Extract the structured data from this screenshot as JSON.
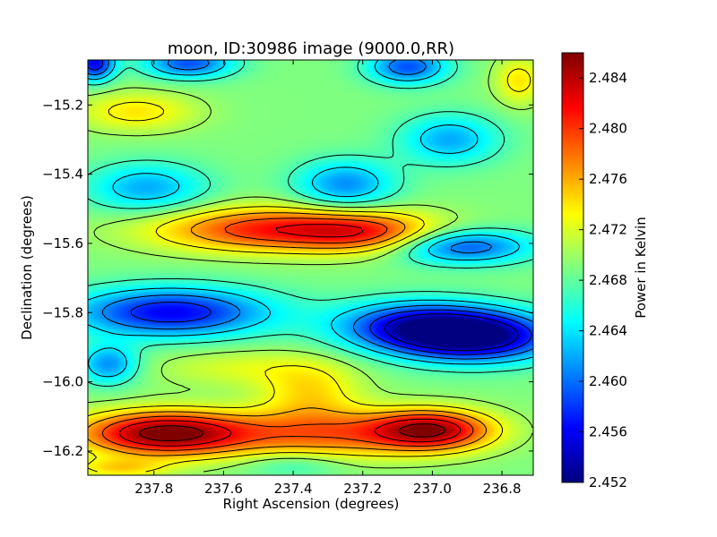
{
  "chart_data": {
    "type": "heatmap",
    "title": "moon, ID:30986 image (9000.0,RR)",
    "xlabel": "Right Ascension (degrees)",
    "ylabel": "Declination (degrees)",
    "colorbar_label": "Power in Kelvin",
    "colormap": "jet",
    "xlim": [
      237.99,
      236.71
    ],
    "ylim": [
      -16.27,
      -15.07
    ],
    "clim": [
      2.452,
      2.486
    ],
    "x_ticks": [
      {
        "value": 237.8,
        "label": "237.8"
      },
      {
        "value": 237.6,
        "label": "237.6"
      },
      {
        "value": 237.4,
        "label": "237.4"
      },
      {
        "value": 237.2,
        "label": "237.2"
      },
      {
        "value": 237.0,
        "label": "237.0"
      },
      {
        "value": 236.8,
        "label": "236.8"
      }
    ],
    "y_ticks": [
      {
        "value": -15.2,
        "label": "−15.2"
      },
      {
        "value": -15.4,
        "label": "−15.4"
      },
      {
        "value": -15.6,
        "label": "−15.6"
      },
      {
        "value": -15.8,
        "label": "−15.8"
      },
      {
        "value": -16.0,
        "label": "−16.0"
      },
      {
        "value": -16.2,
        "label": "−16.2"
      }
    ],
    "colorbar_ticks": [
      {
        "value": 2.452,
        "label": "2.452"
      },
      {
        "value": 2.456,
        "label": "2.456"
      },
      {
        "value": 2.46,
        "label": "2.460"
      },
      {
        "value": 2.464,
        "label": "2.464"
      },
      {
        "value": 2.468,
        "label": "2.468"
      },
      {
        "value": 2.472,
        "label": "2.472"
      },
      {
        "value": 2.476,
        "label": "2.476"
      },
      {
        "value": 2.48,
        "label": "2.480"
      },
      {
        "value": 2.484,
        "label": "2.484"
      }
    ],
    "base_level": 2.469,
    "features": [
      {
        "ra": 237.77,
        "dec": -16.15,
        "value": 2.486,
        "ra_width": 0.17,
        "dec_width": 0.045
      },
      {
        "ra": 237.0,
        "dec": -16.14,
        "value": 2.483,
        "ra_width": 0.12,
        "dec_width": 0.04
      },
      {
        "ra": 237.3,
        "dec": -16.15,
        "value": 2.478,
        "ra_width": 0.22,
        "dec_width": 0.05
      },
      {
        "ra": 237.45,
        "dec": -15.56,
        "value": 2.481,
        "ra_width": 0.24,
        "dec_width": 0.045
      },
      {
        "ra": 237.18,
        "dec": -15.57,
        "value": 2.476,
        "ra_width": 0.14,
        "dec_width": 0.04
      },
      {
        "ra": 237.75,
        "dec": -15.8,
        "value": 2.456,
        "ra_width": 0.2,
        "dec_width": 0.05
      },
      {
        "ra": 236.87,
        "dec": -15.87,
        "value": 2.453,
        "ra_width": 0.16,
        "dec_width": 0.05
      },
      {
        "ra": 237.05,
        "dec": -15.84,
        "value": 2.457,
        "ra_width": 0.16,
        "dec_width": 0.05
      },
      {
        "ra": 236.91,
        "dec": -15.61,
        "value": 2.459,
        "ra_width": 0.14,
        "dec_width": 0.035
      },
      {
        "ra": 237.97,
        "dec": -15.08,
        "value": 2.456,
        "ra_width": 0.04,
        "dec_width": 0.035
      },
      {
        "ra": 237.7,
        "dec": -15.08,
        "value": 2.459,
        "ra_width": 0.09,
        "dec_width": 0.03
      },
      {
        "ra": 237.07,
        "dec": -15.09,
        "value": 2.459,
        "ra_width": 0.08,
        "dec_width": 0.035
      },
      {
        "ra": 237.82,
        "dec": -15.44,
        "value": 2.462,
        "ra_width": 0.12,
        "dec_width": 0.05
      },
      {
        "ra": 237.25,
        "dec": -15.43,
        "value": 2.461,
        "ra_width": 0.1,
        "dec_width": 0.05
      },
      {
        "ra": 236.95,
        "dec": -15.3,
        "value": 2.462,
        "ra_width": 0.1,
        "dec_width": 0.05
      },
      {
        "ra": 237.93,
        "dec": -15.95,
        "value": 2.461,
        "ra_width": 0.06,
        "dec_width": 0.04
      },
      {
        "ra": 237.85,
        "dec": -15.22,
        "value": 2.474,
        "ra_width": 0.12,
        "dec_width": 0.04
      },
      {
        "ra": 236.75,
        "dec": -15.13,
        "value": 2.474,
        "ra_width": 0.05,
        "dec_width": 0.05
      },
      {
        "ra": 237.55,
        "dec": -15.96,
        "value": 2.472,
        "ra_width": 0.18,
        "dec_width": 0.04
      },
      {
        "ra": 237.35,
        "dec": -16.03,
        "value": 2.474,
        "ra_width": 0.1,
        "dec_width": 0.06
      },
      {
        "ra": 237.9,
        "dec": -16.25,
        "value": 2.474,
        "ra_width": 0.1,
        "dec_width": 0.02
      },
      {
        "ra": 237.4,
        "dec": -16.24,
        "value": 2.466,
        "ra_width": 0.1,
        "dec_width": 0.025
      }
    ],
    "contour_levels": [
      2.455,
      2.458,
      2.461,
      2.464,
      2.467,
      2.47,
      2.473,
      2.476,
      2.479,
      2.482,
      2.485
    ]
  }
}
